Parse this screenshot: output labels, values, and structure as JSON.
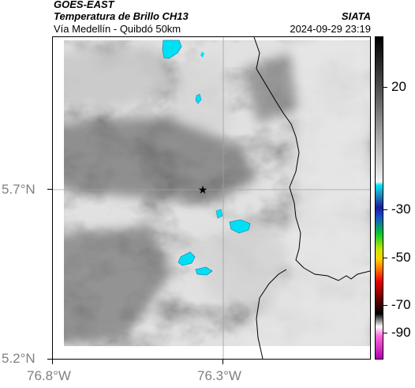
{
  "header": {
    "satellite": "GOES-EAST",
    "product": "Temperatura de Brillo CH13",
    "region": "Vía Medellín - Quibdó 50km",
    "agency": "SIATA",
    "timestamp": "2024-09-29 23:19"
  },
  "map": {
    "lat_labels": [
      "5.7°N",
      "5.2°N"
    ],
    "lon_labels": [
      "76.8°W",
      "76.3°W"
    ],
    "marker_icon": "star-icon",
    "grid_color": "#a0a0a0",
    "border_color": "#000000"
  },
  "colorbar": {
    "tick_labels": [
      "20",
      "-30",
      "-50",
      "-70",
      "-90"
    ],
    "stops": [
      {
        "color": "#000000"
      },
      {
        "color": "#5a5a5a"
      },
      {
        "color": "#b4b4b4"
      },
      {
        "color": "#f2f2f2"
      },
      {
        "color": "#00e5ff"
      },
      {
        "color": "#1f8fb8"
      },
      {
        "color": "#1a1aa0"
      },
      {
        "color": "#1850d0"
      },
      {
        "color": "#00c832"
      },
      {
        "color": "#c8e600"
      },
      {
        "color": "#ffd200"
      },
      {
        "color": "#ff7800"
      },
      {
        "color": "#e60000"
      },
      {
        "color": "#5a0000"
      },
      {
        "color": "#000000"
      },
      {
        "color": "#ffffff"
      },
      {
        "color": "#ff66d9"
      },
      {
        "color": "#b000b0"
      }
    ]
  }
}
